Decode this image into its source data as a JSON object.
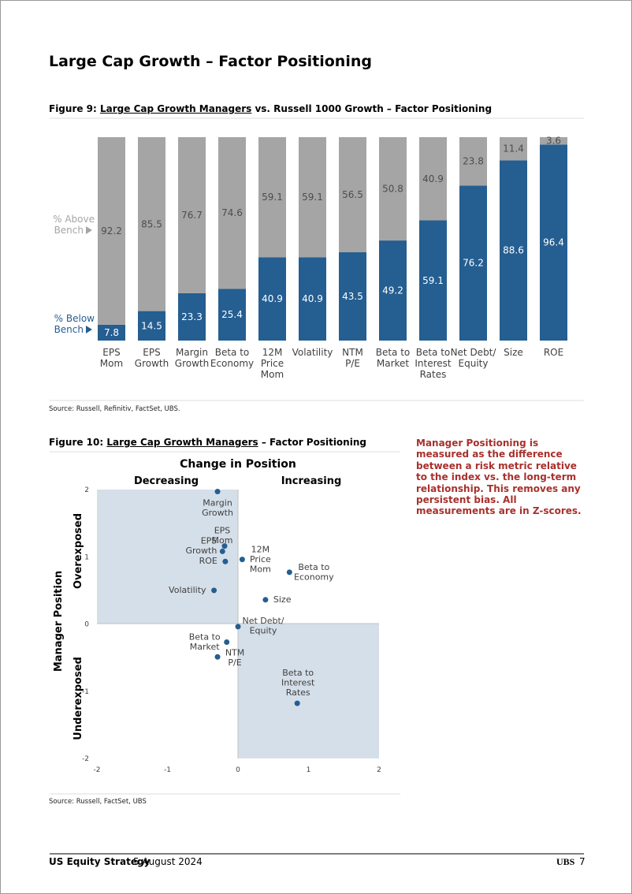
{
  "header": {
    "title": "Large Cap Growth – Factor Positioning"
  },
  "chart_data": [
    {
      "type": "bar",
      "stacked": true,
      "figure_label": "Figure 9:",
      "title": "Large Cap Growth Managers",
      "title_suffix": "vs. Russell 1000 Growth – Factor Positioning",
      "categories": [
        "EPS\nMom",
        "EPS\nGrowth",
        "Margin\nGrowth",
        "Beta to\nEconomy",
        "12M\nPrice\nMom",
        "Volatility",
        "NTM\nP/E",
        "Beta to\nMarket",
        "Beta to\nInterest\nRates",
        "Net Debt/\nEquity",
        "Size",
        "ROE"
      ],
      "series": [
        {
          "name": "% Below\nBench",
          "color": "#255e91",
          "values": [
            7.8,
            14.5,
            23.3,
            25.4,
            40.9,
            40.9,
            43.5,
            49.2,
            59.1,
            76.2,
            88.6,
            96.4
          ]
        },
        {
          "name": "% Above\nBench",
          "color": "#a5a5a5",
          "values": [
            92.2,
            85.5,
            76.7,
            74.6,
            59.1,
            59.1,
            56.5,
            50.8,
            40.9,
            23.8,
            11.4,
            3.6
          ]
        }
      ],
      "ylim": [
        0,
        100
      ],
      "source": "Source: Russell, Refinitiv, FactSet, UBS."
    },
    {
      "type": "scatter",
      "figure_label": "Figure 10:",
      "title": "Large Cap Growth Managers",
      "title_suffix": "– Factor Positioning",
      "chart_title": "Change in Position",
      "x_label_left": "Decreasing",
      "x_label_right": "Increasing",
      "y_label": "Manager Position",
      "y_label_top": "Overexposed",
      "y_label_bottom": "Underexposed",
      "labels": [
        "Margin\nGrowth",
        "EPS\nMom",
        "EPS\nGrowth",
        "ROE",
        "12M\nPrice\nMom",
        "Beta to\nEconomy",
        "Volatility",
        "Size",
        "Net Debt/\nEquity",
        "Beta to\nMarket",
        "NTM\nP/E",
        "Beta to\nInterest\nRates"
      ],
      "x": [
        -0.29,
        -0.19,
        -0.22,
        -0.18,
        0.06,
        0.73,
        -0.34,
        0.39,
        0.0,
        -0.16,
        -0.29,
        0.84
      ],
      "values": [
        1.97,
        1.16,
        1.08,
        0.93,
        0.96,
        0.77,
        0.5,
        0.36,
        -0.04,
        -0.27,
        -0.49,
        -1.18
      ],
      "color": "#255e91",
      "xlim": [
        -2,
        2
      ],
      "ylim": [
        -2,
        2
      ],
      "xticks": [
        -2,
        -1,
        0,
        1,
        2
      ],
      "yticks": [
        -2,
        -1,
        0,
        1,
        2
      ],
      "source": "Source: Russell, FactSet, UBS"
    }
  ],
  "note": "Manager Positioning is measured as the difference between a risk metric relative to the index vs. the long-term relationship. This removes any persistent bias. All measurements are in Z-scores.",
  "footer": {
    "report": "US Equity Strategy",
    "date": "5 August 2024",
    "brand": "UBS",
    "page": "7"
  }
}
